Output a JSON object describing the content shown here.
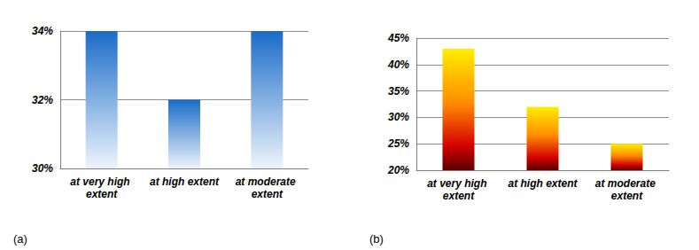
{
  "chart_data": [
    {
      "type": "bar",
      "title": "(a)",
      "categories": [
        "at very high extent",
        "at high extent",
        "at moderate extent"
      ],
      "values": [
        34,
        32,
        34
      ],
      "color": "#1a6cc8",
      "ylim": [
        30,
        34
      ],
      "yticks": [
        {
          "value": 30,
          "label": "30%"
        },
        {
          "value": 32,
          "label": "32%"
        },
        {
          "value": 34,
          "label": "34%"
        }
      ],
      "grid": true
    },
    {
      "type": "bar",
      "title": "(b)",
      "categories": [
        "at very high extent",
        "at high extent",
        "at moderate extent"
      ],
      "values": [
        43,
        32,
        25
      ],
      "color": "#ff8c00",
      "ylim": [
        20,
        45
      ],
      "yticks": [
        {
          "value": 20,
          "label": "20%"
        },
        {
          "value": 25,
          "label": "25%"
        },
        {
          "value": 30,
          "label": "30%"
        },
        {
          "value": 35,
          "label": "35%"
        },
        {
          "value": 40,
          "label": "40%"
        },
        {
          "value": 45,
          "label": "45%"
        }
      ],
      "grid": true
    }
  ]
}
